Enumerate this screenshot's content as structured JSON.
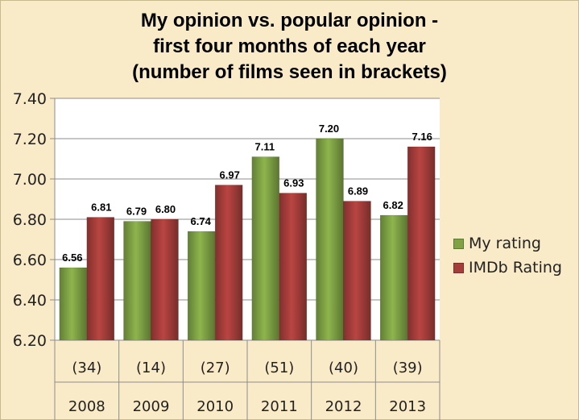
{
  "chart_data": {
    "type": "bar",
    "title_lines": [
      "My opinion vs. popular opinion -",
      "first four months of each year",
      "(number of films seen in brackets)"
    ],
    "categories": [
      "2008",
      "2009",
      "2010",
      "2011",
      "2012",
      "2013"
    ],
    "category_counts": [
      "(34)",
      "(14)",
      "(27)",
      "(51)",
      "(40)",
      "(39)"
    ],
    "series": [
      {
        "name": "My rating",
        "color": "#7FA244",
        "values": [
          6.56,
          6.79,
          6.74,
          7.11,
          7.2,
          6.82
        ],
        "labels": [
          "6.56",
          "6.79",
          "6.74",
          "7.11",
          "7.20",
          "6.82"
        ]
      },
      {
        "name": "IMDb Rating",
        "color": "#A53E3B",
        "values": [
          6.81,
          6.8,
          6.97,
          6.93,
          6.89,
          7.16
        ],
        "labels": [
          "6.81",
          "6.80",
          "6.97",
          "6.93",
          "6.89",
          "7.16"
        ]
      }
    ],
    "yticks": [
      "7.40",
      "7.20",
      "7.00",
      "6.80",
      "6.60",
      "6.40",
      "6.20"
    ],
    "ylim": [
      6.2,
      7.4
    ],
    "grid": true,
    "legend_position": "right"
  }
}
